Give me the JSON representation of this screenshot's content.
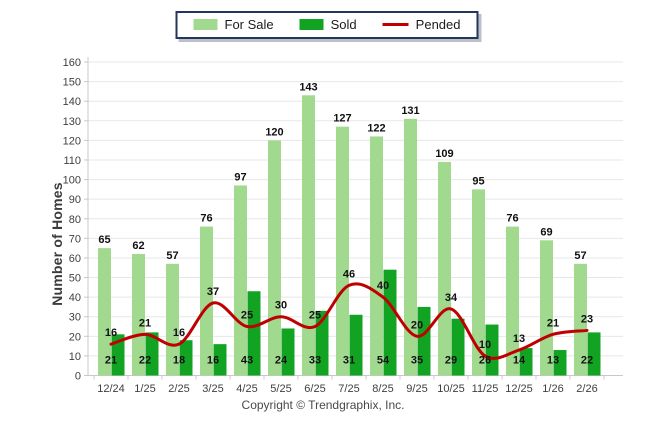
{
  "page": {
    "footer": "Copyright © Trendgraphix, Inc."
  },
  "legend": {
    "items": [
      {
        "label": "For Sale",
        "color": "#A1D98F",
        "swatch": "box"
      },
      {
        "label": "Sold",
        "color": "#12A322",
        "swatch": "box"
      },
      {
        "label": "Pended",
        "color": "#C00000",
        "swatch": "line"
      }
    ]
  },
  "chart_data": {
    "type": "bar",
    "title": "",
    "categories": [
      "12/24",
      "1/25",
      "2/25",
      "3/25",
      "4/25",
      "5/25",
      "6/25",
      "7/25",
      "8/25",
      "9/25",
      "10/25",
      "11/25",
      "12/25",
      "1/26",
      "2/26"
    ],
    "series": [
      {
        "name": "For Sale",
        "type": "bar",
        "color": "#A1D98F",
        "values": [
          65,
          62,
          57,
          76,
          97,
          120,
          143,
          127,
          122,
          131,
          109,
          95,
          76,
          69,
          57
        ]
      },
      {
        "name": "Sold",
        "type": "bar",
        "color": "#12A322",
        "values": [
          21,
          22,
          18,
          16,
          43,
          24,
          33,
          31,
          54,
          35,
          29,
          26,
          14,
          13,
          22
        ]
      },
      {
        "name": "Pended",
        "type": "line",
        "color": "#C00000",
        "values": [
          16,
          21,
          16,
          37,
          25,
          30,
          25,
          46,
          40,
          20,
          34,
          10,
          13,
          21,
          23
        ]
      }
    ],
    "ylabel": "Number of Homes",
    "ylim": [
      0,
      160
    ],
    "ytick_step": 10,
    "grid": true,
    "legend_position": "top-center",
    "value_labels": true,
    "colors": {
      "gridline": "#E7E7E7",
      "axis": "#C8C8C8",
      "tick_text": "#3f3f3f",
      "value_text": "#111111"
    }
  }
}
